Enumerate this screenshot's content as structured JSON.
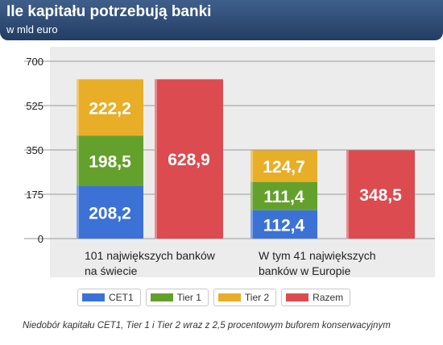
{
  "header": {
    "title": "Ile kapitału potrzebują banki",
    "subtitle": "w mld euro"
  },
  "chart_data": {
    "type": "bar",
    "stacked": true,
    "categories": [
      "101 największych banków na świecie",
      "W tym 41 największych banków w Europie"
    ],
    "category_lines": [
      [
        "101 największych banków",
        "na świecie"
      ],
      [
        "W tym 41 największych",
        "banków w Europie"
      ]
    ],
    "series": [
      {
        "name": "CET1",
        "values": [
          208.2,
          112.4
        ],
        "labels": [
          "208,2",
          "112,4"
        ],
        "color": "#3c72d6",
        "stack": "components"
      },
      {
        "name": "Tier 1",
        "values": [
          198.5,
          111.4
        ],
        "labels": [
          "198,5",
          "111,4"
        ],
        "color": "#64a12c",
        "stack": "components"
      },
      {
        "name": "Tier 2",
        "values": [
          222.2,
          124.7
        ],
        "labels": [
          "222,2",
          "124,7"
        ],
        "color": "#e8ae28",
        "stack": "components"
      },
      {
        "name": "Razem",
        "values": [
          628.9,
          348.5
        ],
        "labels": [
          "628,9",
          "348,5"
        ],
        "color": "#dc4b4f",
        "stack": "total"
      }
    ],
    "ylim": [
      0,
      700
    ],
    "yticks": [
      0,
      175,
      350,
      525,
      700
    ],
    "ytick_labels": [
      "0",
      "175",
      "350",
      "525",
      "700"
    ],
    "grid": true,
    "legend_position": "bottom"
  },
  "legend": [
    "CET1",
    "Tier 1",
    "Tier 2",
    "Razem"
  ],
  "footnote": "Niedobór kapitału CET1, Tier 1 i Tier 2 wraz z 2,5 procentowym buforem konserwacyjnym"
}
